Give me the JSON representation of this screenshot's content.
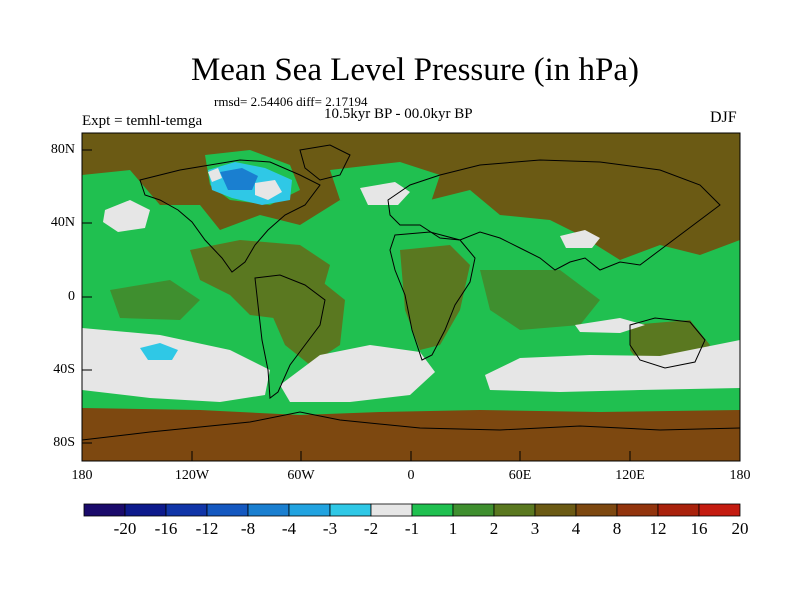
{
  "title": "Mean Sea Level Pressure (in hPa)",
  "stats_text": "rmsd= 2.54406 diff= 2.17194",
  "period_text": "10.5kyr BP - 00.0kyr BP",
  "experiment_text": "Expt = temhl-temga",
  "season_text": "DJF",
  "y_axis_labels": [
    "80N",
    "40N",
    "0",
    "40S",
    "80S"
  ],
  "x_axis_labels": [
    "180",
    "120W",
    "60W",
    "0",
    "60E",
    "120E",
    "180"
  ],
  "colorbar": {
    "colors": [
      "#1a0a6b",
      "#0d1a8c",
      "#1035a8",
      "#1458c0",
      "#1a7fd0",
      "#21a3e0",
      "#2fc8e6",
      "#e6e6e6",
      "#20c050",
      "#3f8f2f",
      "#5a7820",
      "#6b5a14",
      "#7d4810",
      "#92340d",
      "#a9220c",
      "#c41b10"
    ],
    "labels": [
      "-20",
      "-16",
      "-12",
      "-8",
      "-4",
      "-3",
      "-2",
      "-1",
      "1",
      "2",
      "3",
      "4",
      "8",
      "12",
      "16",
      "20"
    ]
  },
  "map_colors": {
    "brown": "#6b5a14",
    "olive": "#5a7820",
    "dark_green": "#3f8f2f",
    "green": "#20c050",
    "gray": "#e6e6e6",
    "cyan": "#2fc8e6",
    "light_blue": "#1a7fd0",
    "rust": "#7d4810"
  }
}
